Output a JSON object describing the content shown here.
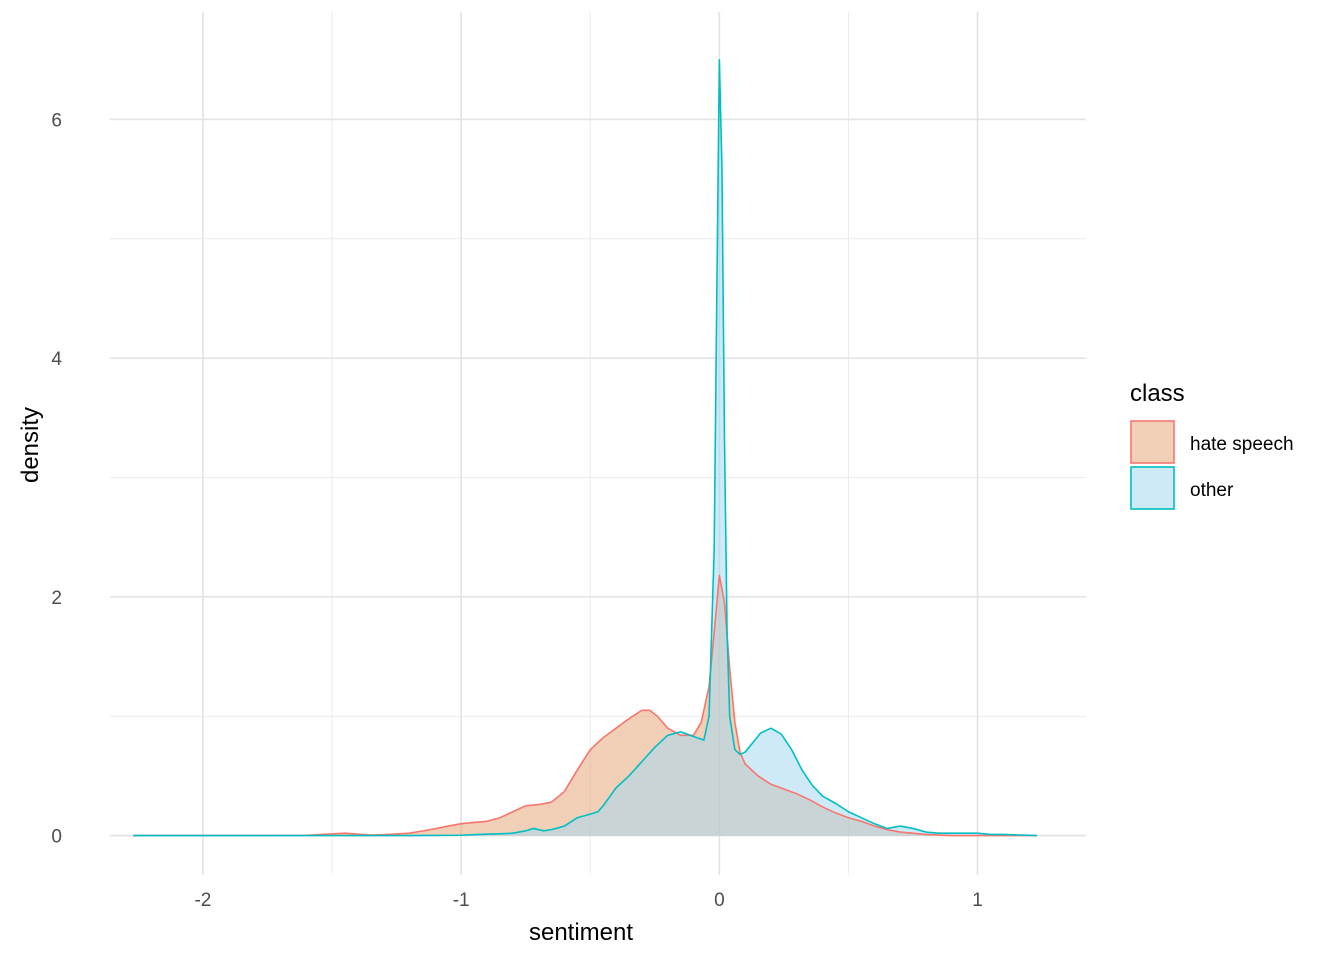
{
  "chart_data": {
    "type": "area",
    "subtype": "density",
    "xlabel": "sentiment",
    "ylabel": "density",
    "xlim": [
      -2.36,
      1.42
    ],
    "ylim": [
      -0.33,
      6.9
    ],
    "x_ticks": [
      -2,
      -1,
      0,
      1
    ],
    "y_ticks": [
      0,
      2,
      4,
      6
    ],
    "grid": true,
    "legend": {
      "title": "class",
      "position": "right"
    },
    "series": [
      {
        "name": "hate speech",
        "color": "#F8766D",
        "fill": "#E8A87C",
        "points": [
          [
            -2.27,
            0.0
          ],
          [
            -1.8,
            0.0
          ],
          [
            -1.6,
            0.003
          ],
          [
            -1.52,
            0.012
          ],
          [
            -1.45,
            0.02
          ],
          [
            -1.4,
            0.012
          ],
          [
            -1.35,
            0.005
          ],
          [
            -1.3,
            0.008
          ],
          [
            -1.2,
            0.02
          ],
          [
            -1.12,
            0.05
          ],
          [
            -1.05,
            0.08
          ],
          [
            -1.0,
            0.1
          ],
          [
            -0.95,
            0.11
          ],
          [
            -0.9,
            0.12
          ],
          [
            -0.85,
            0.15
          ],
          [
            -0.8,
            0.2
          ],
          [
            -0.75,
            0.25
          ],
          [
            -0.7,
            0.26
          ],
          [
            -0.65,
            0.28
          ],
          [
            -0.6,
            0.37
          ],
          [
            -0.55,
            0.55
          ],
          [
            -0.5,
            0.72
          ],
          [
            -0.45,
            0.82
          ],
          [
            -0.4,
            0.9
          ],
          [
            -0.35,
            0.98
          ],
          [
            -0.3,
            1.05
          ],
          [
            -0.27,
            1.05
          ],
          [
            -0.24,
            1.0
          ],
          [
            -0.2,
            0.9
          ],
          [
            -0.15,
            0.84
          ],
          [
            -0.1,
            0.84
          ],
          [
            -0.07,
            0.95
          ],
          [
            -0.04,
            1.25
          ],
          [
            -0.02,
            1.7
          ],
          [
            0.0,
            2.18
          ],
          [
            0.02,
            1.95
          ],
          [
            0.04,
            1.4
          ],
          [
            0.06,
            0.95
          ],
          [
            0.08,
            0.7
          ],
          [
            0.1,
            0.6
          ],
          [
            0.15,
            0.5
          ],
          [
            0.2,
            0.43
          ],
          [
            0.25,
            0.39
          ],
          [
            0.3,
            0.35
          ],
          [
            0.35,
            0.3
          ],
          [
            0.4,
            0.24
          ],
          [
            0.45,
            0.19
          ],
          [
            0.5,
            0.15
          ],
          [
            0.55,
            0.12
          ],
          [
            0.6,
            0.08
          ],
          [
            0.65,
            0.05
          ],
          [
            0.7,
            0.03
          ],
          [
            0.8,
            0.01
          ],
          [
            0.9,
            0.0
          ],
          [
            1.0,
            0.0
          ],
          [
            1.1,
            0.0
          ],
          [
            1.23,
            0.0
          ]
        ]
      },
      {
        "name": "other",
        "color": "#00BFC4",
        "fill": "#A8D8F0",
        "points": [
          [
            -2.27,
            0.0
          ],
          [
            -1.8,
            0.0
          ],
          [
            -1.5,
            0.0
          ],
          [
            -1.2,
            0.0
          ],
          [
            -1.0,
            0.003
          ],
          [
            -0.95,
            0.008
          ],
          [
            -0.9,
            0.012
          ],
          [
            -0.85,
            0.015
          ],
          [
            -0.8,
            0.02
          ],
          [
            -0.75,
            0.04
          ],
          [
            -0.72,
            0.06
          ],
          [
            -0.68,
            0.04
          ],
          [
            -0.65,
            0.05
          ],
          [
            -0.6,
            0.08
          ],
          [
            -0.55,
            0.15
          ],
          [
            -0.5,
            0.18
          ],
          [
            -0.47,
            0.2
          ],
          [
            -0.45,
            0.25
          ],
          [
            -0.4,
            0.4
          ],
          [
            -0.35,
            0.5
          ],
          [
            -0.3,
            0.62
          ],
          [
            -0.25,
            0.74
          ],
          [
            -0.2,
            0.84
          ],
          [
            -0.15,
            0.87
          ],
          [
            -0.1,
            0.83
          ],
          [
            -0.06,
            0.8
          ],
          [
            -0.04,
            1.0
          ],
          [
            -0.02,
            2.4
          ],
          [
            -0.01,
            4.5
          ],
          [
            0.0,
            6.5
          ],
          [
            0.01,
            5.6
          ],
          [
            0.02,
            3.3
          ],
          [
            0.03,
            1.7
          ],
          [
            0.04,
            1.0
          ],
          [
            0.06,
            0.72
          ],
          [
            0.08,
            0.68
          ],
          [
            0.1,
            0.7
          ],
          [
            0.13,
            0.78
          ],
          [
            0.16,
            0.86
          ],
          [
            0.2,
            0.9
          ],
          [
            0.24,
            0.85
          ],
          [
            0.28,
            0.72
          ],
          [
            0.32,
            0.55
          ],
          [
            0.36,
            0.42
          ],
          [
            0.4,
            0.33
          ],
          [
            0.45,
            0.27
          ],
          [
            0.5,
            0.2
          ],
          [
            0.55,
            0.15
          ],
          [
            0.6,
            0.1
          ],
          [
            0.65,
            0.06
          ],
          [
            0.7,
            0.08
          ],
          [
            0.75,
            0.06
          ],
          [
            0.8,
            0.03
          ],
          [
            0.85,
            0.02
          ],
          [
            0.9,
            0.02
          ],
          [
            0.95,
            0.02
          ],
          [
            1.0,
            0.02
          ],
          [
            1.05,
            0.01
          ],
          [
            1.1,
            0.01
          ],
          [
            1.23,
            0.0
          ]
        ]
      }
    ]
  }
}
